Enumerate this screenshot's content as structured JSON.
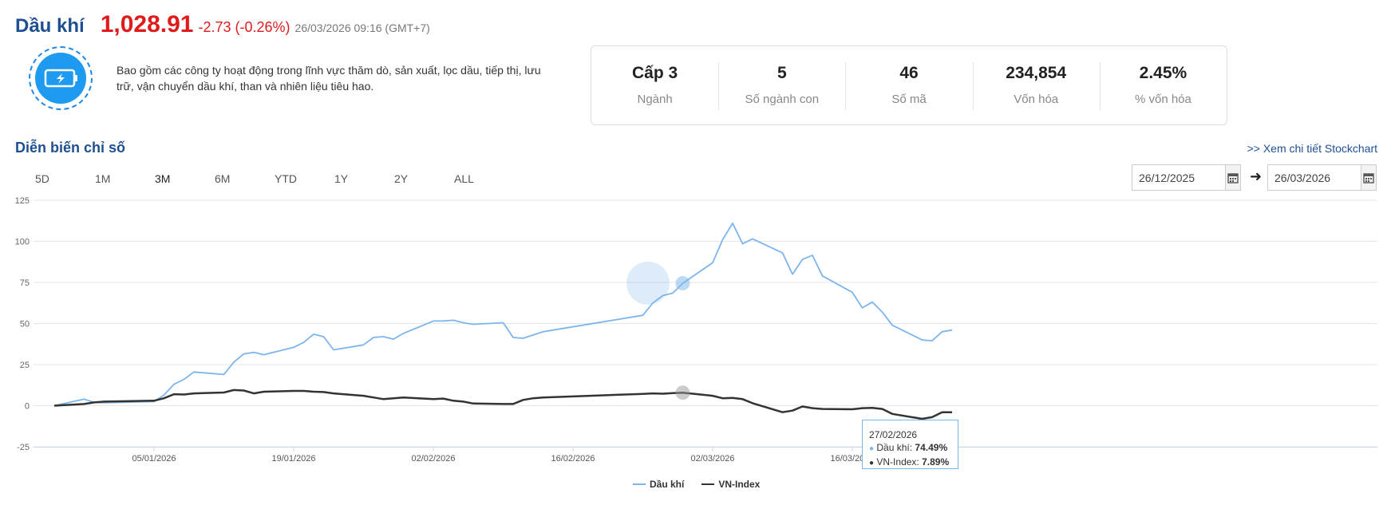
{
  "header": {
    "title": "Dầu khí",
    "price": "1,028.91",
    "change": "-2.73 (-0.26%)",
    "timestamp": "26/03/2026 09:16 (GMT+7)"
  },
  "description": "Bao gồm các công ty hoạt động trong lĩnh vực thăm dò, sản xuất, lọc dầu, tiếp thị, lưu trữ, vận chuyển dầu khí, than và nhiên liệu tiêu hao.",
  "stats": [
    {
      "value": "Cấp 3",
      "label": "Ngành"
    },
    {
      "value": "5",
      "label": "Số ngành con"
    },
    {
      "value": "46",
      "label": "Số mã"
    },
    {
      "value": "234,854",
      "label": "Vốn hóa"
    },
    {
      "value": "2.45%",
      "label": "% vốn hóa"
    }
  ],
  "section": {
    "title": "Diễn biến chỉ số",
    "detail_link": ">> Xem chi tiết Stockchart"
  },
  "periods": [
    "5D",
    "1M",
    "3M",
    "6M",
    "YTD",
    "1Y",
    "2Y",
    "ALL"
  ],
  "active_period": "3M",
  "date_range": {
    "from": "26/12/2025",
    "to": "26/03/2026"
  },
  "icons": {
    "logo": "battery-lightning-icon",
    "calendar": "calendar-icon",
    "arrow": "arrow-right-icon"
  },
  "colors": {
    "title": "#1d4f91",
    "price": "#e01b1b",
    "series_oil": "#7cb5ec",
    "series_vnindex": "#333333"
  },
  "tooltip": {
    "date": "27/02/2026",
    "series1_label": "Dầu khí: ",
    "series1_value": "74.49%",
    "series2_label": "VN-Index: ",
    "series2_value": "7.89%"
  },
  "chart_data": {
    "type": "line",
    "ylim": [
      -25,
      125
    ],
    "yticks": [
      125,
      100,
      75,
      50,
      25,
      0,
      -25
    ],
    "xlim": [
      "2025-12-26",
      "2026-03-26"
    ],
    "xticks": [
      {
        "date": "2026-01-05",
        "label": "05/01/2026"
      },
      {
        "date": "2026-01-19",
        "label": "19/01/2026"
      },
      {
        "date": "2026-02-02",
        "label": "02/02/2026"
      },
      {
        "date": "2026-02-16",
        "label": "16/02/2026"
      },
      {
        "date": "2026-03-02",
        "label": "02/03/2026"
      },
      {
        "date": "2026-03-16",
        "label": "16/03/2026"
      }
    ],
    "grid": true,
    "legend_position": "bottom-center",
    "highlight_date": "2026-02-27",
    "series": [
      {
        "name": "Dầu khí",
        "color": "#7cb5ec",
        "points": [
          [
            "2025-12-26",
            0.0
          ],
          [
            "2025-12-29",
            4.0
          ],
          [
            "2025-12-30",
            2.0
          ],
          [
            "2025-12-31",
            1.8
          ],
          [
            "2026-01-05",
            2.5
          ],
          [
            "2026-01-06",
            6.5
          ],
          [
            "2026-01-07",
            13.0
          ],
          [
            "2026-01-08",
            16.0
          ],
          [
            "2026-01-09",
            20.5
          ],
          [
            "2026-01-12",
            19.0
          ],
          [
            "2026-01-13",
            26.5
          ],
          [
            "2026-01-14",
            31.5
          ],
          [
            "2026-01-15",
            32.5
          ],
          [
            "2026-01-16",
            31.0
          ],
          [
            "2026-01-19",
            35.5
          ],
          [
            "2026-01-20",
            38.5
          ],
          [
            "2026-01-21",
            43.5
          ],
          [
            "2026-01-22",
            42.0
          ],
          [
            "2026-01-23",
            34.0
          ],
          [
            "2026-01-26",
            37.0
          ],
          [
            "2026-01-27",
            41.5
          ],
          [
            "2026-01-28",
            42.0
          ],
          [
            "2026-01-29",
            40.5
          ],
          [
            "2026-01-30",
            44.0
          ],
          [
            "2026-02-02",
            51.5
          ],
          [
            "2026-02-03",
            51.5
          ],
          [
            "2026-02-04",
            52.0
          ],
          [
            "2026-02-05",
            50.5
          ],
          [
            "2026-02-06",
            49.5
          ],
          [
            "2026-02-09",
            50.5
          ],
          [
            "2026-02-10",
            41.5
          ],
          [
            "2026-02-11",
            41.0
          ],
          [
            "2026-02-12",
            43.0
          ],
          [
            "2026-02-13",
            45.0
          ],
          [
            "2026-02-23",
            55.0
          ],
          [
            "2026-02-24",
            62.5
          ],
          [
            "2026-02-25",
            67.0
          ],
          [
            "2026-02-26",
            68.5
          ],
          [
            "2026-02-27",
            74.49
          ],
          [
            "2026-03-02",
            87.0
          ],
          [
            "2026-03-03",
            101.0
          ],
          [
            "2026-03-04",
            111.0
          ],
          [
            "2026-03-05",
            98.5
          ],
          [
            "2026-03-06",
            101.5
          ],
          [
            "2026-03-09",
            93.0
          ],
          [
            "2026-03-10",
            80.0
          ],
          [
            "2026-03-11",
            89.0
          ],
          [
            "2026-03-12",
            91.5
          ],
          [
            "2026-03-13",
            79.0
          ],
          [
            "2026-03-16",
            69.0
          ],
          [
            "2026-03-17",
            59.5
          ],
          [
            "2026-03-18",
            63.0
          ],
          [
            "2026-03-19",
            57.0
          ],
          [
            "2026-03-20",
            49.0
          ],
          [
            "2026-03-23",
            40.0
          ],
          [
            "2026-03-24",
            39.5
          ],
          [
            "2026-03-25",
            45.0
          ],
          [
            "2026-03-26",
            46.0
          ]
        ]
      },
      {
        "name": "VN-Index",
        "color": "#333333",
        "points": [
          [
            "2025-12-26",
            0.0
          ],
          [
            "2025-12-29",
            1.0
          ],
          [
            "2025-12-30",
            2.0
          ],
          [
            "2025-12-31",
            2.5
          ],
          [
            "2026-01-05",
            3.0
          ],
          [
            "2026-01-06",
            4.5
          ],
          [
            "2026-01-07",
            7.0
          ],
          [
            "2026-01-08",
            6.8
          ],
          [
            "2026-01-09",
            7.5
          ],
          [
            "2026-01-12",
            8.0
          ],
          [
            "2026-01-13",
            9.5
          ],
          [
            "2026-01-14",
            9.2
          ],
          [
            "2026-01-15",
            7.5
          ],
          [
            "2026-01-16",
            8.5
          ],
          [
            "2026-01-19",
            9.0
          ],
          [
            "2026-01-20",
            9.0
          ],
          [
            "2026-01-21",
            8.5
          ],
          [
            "2026-01-22",
            8.3
          ],
          [
            "2026-01-23",
            7.5
          ],
          [
            "2026-01-26",
            6.0
          ],
          [
            "2026-01-27",
            5.0
          ],
          [
            "2026-01-28",
            4.0
          ],
          [
            "2026-01-29",
            4.5
          ],
          [
            "2026-01-30",
            5.0
          ],
          [
            "2026-02-02",
            4.0
          ],
          [
            "2026-02-03",
            4.3
          ],
          [
            "2026-02-04",
            3.0
          ],
          [
            "2026-02-05",
            2.5
          ],
          [
            "2026-02-06",
            1.3
          ],
          [
            "2026-02-09",
            1.0
          ],
          [
            "2026-02-10",
            1.0
          ],
          [
            "2026-02-11",
            3.5
          ],
          [
            "2026-02-12",
            4.5
          ],
          [
            "2026-02-13",
            5.0
          ],
          [
            "2026-02-23",
            7.2
          ],
          [
            "2026-02-24",
            7.5
          ],
          [
            "2026-02-25",
            7.3
          ],
          [
            "2026-02-26",
            7.6
          ],
          [
            "2026-02-27",
            7.89
          ],
          [
            "2026-03-02",
            6.0
          ],
          [
            "2026-03-03",
            4.5
          ],
          [
            "2026-03-04",
            4.7
          ],
          [
            "2026-03-05",
            4.0
          ],
          [
            "2026-03-06",
            1.5
          ],
          [
            "2026-03-09",
            -4.0
          ],
          [
            "2026-03-10",
            -3.0
          ],
          [
            "2026-03-11",
            -0.5
          ],
          [
            "2026-03-12",
            -1.5
          ],
          [
            "2026-03-13",
            -2.0
          ],
          [
            "2026-03-16",
            -2.2
          ],
          [
            "2026-03-17",
            -1.5
          ],
          [
            "2026-03-18",
            -1.3
          ],
          [
            "2026-03-19",
            -2.0
          ],
          [
            "2026-03-20",
            -5.0
          ],
          [
            "2026-03-23",
            -8.0
          ],
          [
            "2026-03-24",
            -7.0
          ],
          [
            "2026-03-25",
            -4.0
          ],
          [
            "2026-03-26",
            -4.0
          ]
        ]
      }
    ]
  }
}
